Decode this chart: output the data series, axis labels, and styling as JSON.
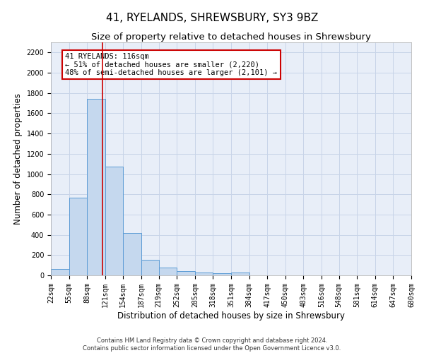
{
  "title": "41, RYELANDS, SHREWSBURY, SY3 9BZ",
  "subtitle": "Size of property relative to detached houses in Shrewsbury",
  "xlabel": "Distribution of detached houses by size in Shrewsbury",
  "ylabel": "Number of detached properties",
  "footer_line1": "Contains HM Land Registry data © Crown copyright and database right 2024.",
  "footer_line2": "Contains public sector information licensed under the Open Government Licence v3.0.",
  "bin_edges": [
    22,
    55,
    88,
    121,
    154,
    187,
    219,
    252,
    285,
    318,
    351,
    384,
    417,
    450,
    483,
    516,
    548,
    581,
    614,
    647,
    680
  ],
  "bar_heights": [
    60,
    770,
    1740,
    1070,
    420,
    155,
    80,
    45,
    30,
    20,
    25,
    0,
    0,
    0,
    0,
    0,
    0,
    0,
    0,
    0
  ],
  "bar_color": "#c5d8ee",
  "bar_edge_color": "#5b9bd5",
  "property_size": 116,
  "property_line_color": "#cc0000",
  "annotation_text": "41 RYELANDS: 116sqm\n← 51% of detached houses are smaller (2,220)\n48% of semi-detached houses are larger (2,101) →",
  "annotation_box_color": "#ffffff",
  "annotation_box_edge": "#cc0000",
  "ylim": [
    0,
    2300
  ],
  "yticks": [
    0,
    200,
    400,
    600,
    800,
    1000,
    1200,
    1400,
    1600,
    1800,
    2000,
    2200
  ],
  "grid_color": "#c8d4e8",
  "bg_color": "#e8eef8",
  "title_fontsize": 11,
  "subtitle_fontsize": 9.5,
  "tick_label_fontsize": 7,
  "ylabel_fontsize": 8.5,
  "xlabel_fontsize": 8.5,
  "annotation_fontsize": 7.5,
  "footer_fontsize": 6
}
